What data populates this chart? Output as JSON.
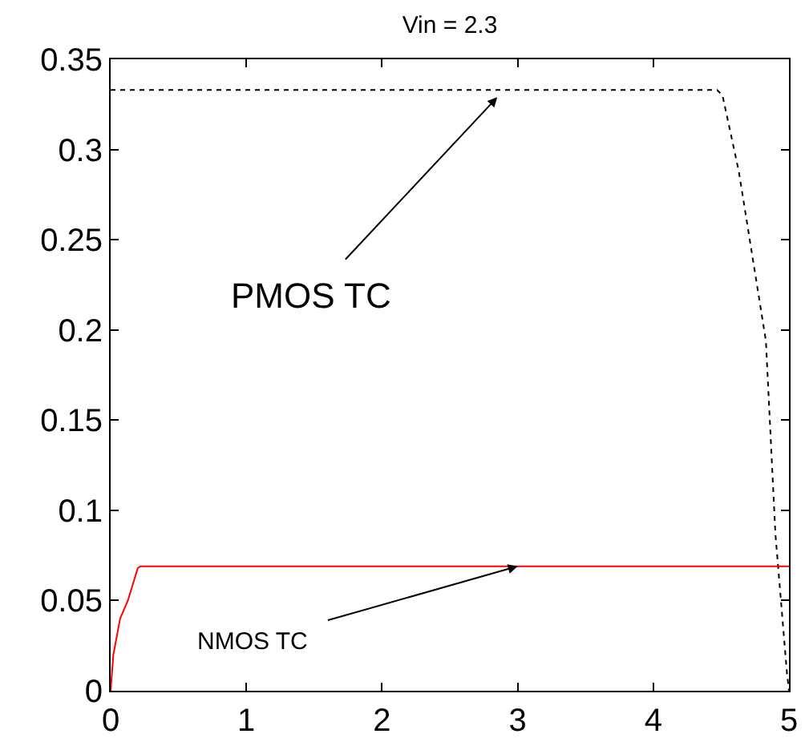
{
  "chart_data": {
    "type": "line",
    "title": "Vin = 2.3",
    "series": [
      {
        "color": "#000000",
        "line_style": "dotted",
        "x": [
          0,
          1,
          2,
          3,
          4,
          4.47,
          4.51,
          4.63,
          4.83,
          4.9,
          4.985,
          5
        ],
        "values": [
          0.333,
          0.333,
          0.333,
          0.333,
          0.333,
          0.333,
          0.33,
          0.288,
          0.194,
          0.087,
          0.01,
          0
        ]
      },
      {
        "color": "#ff0000",
        "line_style": "solid",
        "x": [
          0,
          0.02,
          0.07,
          0.127,
          0.2,
          0.22,
          1,
          2,
          3,
          4,
          5
        ],
        "values": [
          0,
          0.02,
          0.04,
          0.05,
          0.068,
          0.069,
          0.069,
          0.069,
          0.069,
          0.069,
          0.069
        ]
      }
    ],
    "annotations": [
      {
        "text": "PMOS TC",
        "x": 2.85,
        "y": 0.329
      },
      {
        "text": "NMOS TC",
        "x": 3.0,
        "y": 0.069
      }
    ],
    "xlim": [
      0,
      5
    ],
    "xticks": [
      0,
      1,
      2,
      3,
      4,
      5
    ],
    "ylim": [
      0,
      0.35
    ],
    "yticks": [
      0,
      0.05,
      0.1,
      0.15,
      0.2,
      0.25,
      0.3,
      0.35
    ],
    "marker": "none"
  }
}
